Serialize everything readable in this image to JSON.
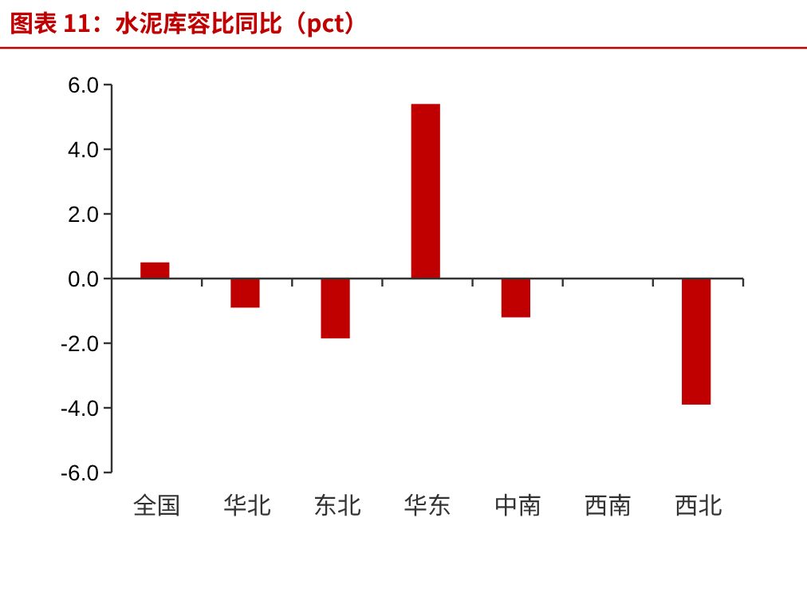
{
  "chart_data": {
    "type": "bar",
    "title": "图表 11：水泥库容比同比（pct）",
    "categories": [
      "全国",
      "华北",
      "东北",
      "华东",
      "中南",
      "西南",
      "西北"
    ],
    "series": [
      {
        "color": "#c00000",
        "values": [
          0.5,
          -0.9,
          -1.85,
          5.4,
          -1.2,
          0,
          -3.9
        ]
      }
    ],
    "ylim": [
      -6,
      6
    ],
    "yticks": [
      {
        "value": -6,
        "label": "-6.0"
      },
      {
        "value": -4,
        "label": "-4.0"
      },
      {
        "value": -2,
        "label": "-2.0"
      },
      {
        "value": 0,
        "label": "0.0"
      },
      {
        "value": 2,
        "label": "2.0"
      },
      {
        "value": 4,
        "label": "4.0"
      },
      {
        "value": 6,
        "label": "6.0"
      }
    ],
    "stacked": false
  }
}
